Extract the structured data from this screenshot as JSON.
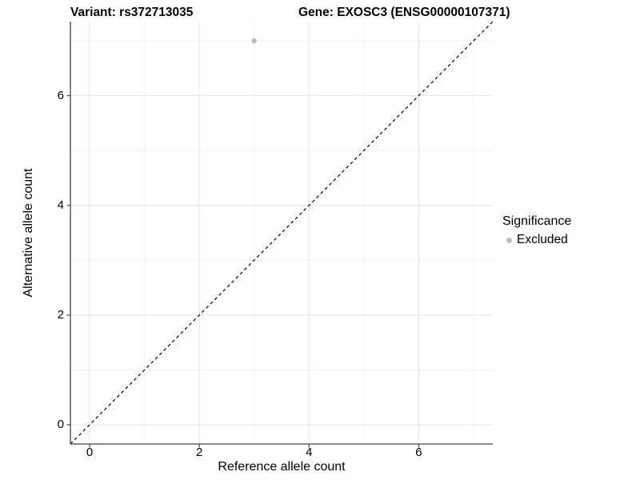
{
  "titles": {
    "variant": "Variant: rs372713035",
    "gene": "Gene: EXOSC3 (ENSG00000107371)"
  },
  "axes": {
    "x": {
      "label": "Reference allele count",
      "ticks": [
        "0",
        "2",
        "4",
        "6"
      ]
    },
    "y": {
      "label": "Alternative allele count",
      "ticks": [
        "0",
        "2",
        "4",
        "6"
      ]
    }
  },
  "legend": {
    "title": "Significance",
    "entries": [
      {
        "label": "Excluded",
        "color": "#bdbdbd"
      }
    ]
  },
  "chart_data": {
    "type": "scatter",
    "title": "Variant: rs372713035    Gene: EXOSC3 (ENSG00000107371)",
    "xlabel": "Reference allele count",
    "ylabel": "Alternative allele count",
    "xlim": [
      -0.35,
      7.35
    ],
    "ylim": [
      -0.35,
      7.35
    ],
    "x_major_ticks": [
      0,
      2,
      4,
      6
    ],
    "y_major_ticks": [
      0,
      2,
      4,
      6
    ],
    "x_minor_gridlines": [
      1,
      3,
      5,
      7
    ],
    "y_minor_gridlines": [
      1,
      3,
      5,
      7
    ],
    "grid": true,
    "legend_position": "right",
    "series": [
      {
        "name": "Excluded",
        "color": "#bdbdbd",
        "points": [
          {
            "x": 3,
            "y": 7
          }
        ]
      }
    ],
    "reference_line": {
      "style": "dashed",
      "slope": 1,
      "intercept": 0,
      "color": "#000000"
    },
    "colors": {
      "background": "#ffffff",
      "major_grid": "#e4e4e4",
      "minor_grid": "#f1f1f1",
      "axis_line": "#454545",
      "tick_mark": "#454545",
      "text": "#000000",
      "point": "#bdbdbd"
    }
  }
}
